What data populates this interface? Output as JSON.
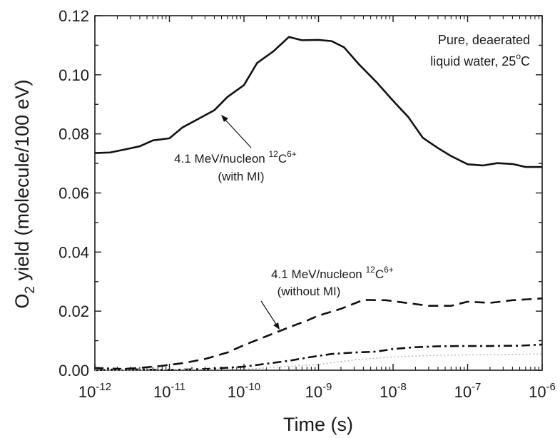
{
  "chart_data": {
    "type": "line",
    "xlabel": "Time (s)",
    "ylabel": {
      "main": "O",
      "sub": "2",
      "rest": " yield (molecule/100 eV)"
    },
    "xscale": "log",
    "xlim": [
      1e-12,
      1e-06
    ],
    "ylim": [
      0,
      0.12
    ],
    "yticks": [
      "0.00",
      "0.02",
      "0.04",
      "0.06",
      "0.08",
      "0.10",
      "0.12"
    ],
    "xticks": [
      {
        "value": 1e-12,
        "base": "10",
        "exp": "-12"
      },
      {
        "value": 1e-11,
        "base": "10",
        "exp": "-11"
      },
      {
        "value": 1e-10,
        "base": "10",
        "exp": "-10"
      },
      {
        "value": 1e-09,
        "base": "10",
        "exp": "-9"
      },
      {
        "value": 1e-08,
        "base": "10",
        "exp": "-8"
      },
      {
        "value": 1e-07,
        "base": "10",
        "exp": "-7"
      },
      {
        "value": 1e-06,
        "base": "10",
        "exp": "-6"
      }
    ],
    "grid": false,
    "series": [
      {
        "style": "solid",
        "color": "#111111",
        "x": [
          1e-12,
          1.6e-12,
          2.5e-12,
          4e-12,
          6e-12,
          1e-11,
          1.5e-11,
          2.5e-11,
          4e-11,
          6e-11,
          1e-10,
          1.5e-10,
          2.5e-10,
          4e-10,
          6e-10,
          1e-09,
          1.5e-09,
          2.2e-09,
          3.5e-09,
          6e-09,
          1e-08,
          1.6e-08,
          2.5e-08,
          4e-08,
          6e-08,
          1e-07,
          1.6e-07,
          2.5e-07,
          4e-07,
          6e-07,
          1e-06
        ],
        "y": [
          0.0735,
          0.0737,
          0.0747,
          0.0758,
          0.0778,
          0.0785,
          0.0822,
          0.0852,
          0.088,
          0.0925,
          0.0965,
          0.104,
          0.108,
          0.1128,
          0.1117,
          0.1118,
          0.1114,
          0.1093,
          0.1035,
          0.0975,
          0.0912,
          0.0857,
          0.0787,
          0.0752,
          0.0725,
          0.0697,
          0.0693,
          0.0701,
          0.0698,
          0.0688,
          0.0688
        ]
      },
      {
        "style": "dashed",
        "color": "#111111",
        "x": [
          1e-12,
          2e-12,
          4e-12,
          8e-12,
          1.6e-11,
          3e-11,
          6e-11,
          1e-10,
          2e-10,
          4e-10,
          7e-10,
          1e-09,
          2e-09,
          4e-09,
          8e-09,
          1.5e-08,
          3e-08,
          6e-08,
          1e-07,
          2e-07,
          4e-07,
          1e-06
        ],
        "y": [
          0.0,
          0.0003,
          0.0008,
          0.0015,
          0.0025,
          0.0038,
          0.006,
          0.0085,
          0.0115,
          0.0145,
          0.0168,
          0.0185,
          0.0208,
          0.0238,
          0.0237,
          0.0228,
          0.0218,
          0.0218,
          0.0232,
          0.0228,
          0.0237,
          0.0243
        ]
      },
      {
        "style": "dashdot",
        "color": "#111111",
        "x": [
          1e-12,
          3e-12,
          1e-11,
          3e-11,
          1e-10,
          2e-10,
          4e-10,
          8e-10,
          1.5e-09,
          3e-09,
          6e-09,
          1e-08,
          2e-08,
          4e-08,
          8e-08,
          2e-07,
          5e-07,
          1e-06
        ],
        "y": [
          0.0008,
          0.0003,
          0.0001,
          0.0004,
          0.0012,
          0.0022,
          0.0032,
          0.0045,
          0.0055,
          0.006,
          0.0063,
          0.0072,
          0.0078,
          0.0081,
          0.0082,
          0.0082,
          0.0083,
          0.0087
        ]
      },
      {
        "style": "dotted",
        "color": "#bbbbbb",
        "x": [
          1e-12,
          1e-10,
          1e-09,
          3e-09,
          1e-08,
          3e-08,
          1e-07,
          3e-07,
          1e-06
        ],
        "y": [
          0.0,
          0.0003,
          0.002,
          0.0035,
          0.0045,
          0.005,
          0.0052,
          0.0053,
          0.0055
        ]
      }
    ],
    "annotations": [
      {
        "lines": [
          {
            "text": "4.1 MeV/nucleon ",
            "sup_pre": "12",
            "mid": "C",
            "sup_post": "6+"
          },
          {
            "text": "(with MI)"
          }
        ]
      },
      {
        "lines": [
          {
            "text": "4.1 MeV/nucleon ",
            "sup_pre": "12",
            "mid": "C",
            "sup_post": "6+"
          },
          {
            "text": "(without MI)"
          }
        ]
      }
    ],
    "corner_label": {
      "line1": "Pure, deaerated",
      "line2": "liquid water, 25",
      "unit": "C",
      "degree": "o"
    }
  }
}
